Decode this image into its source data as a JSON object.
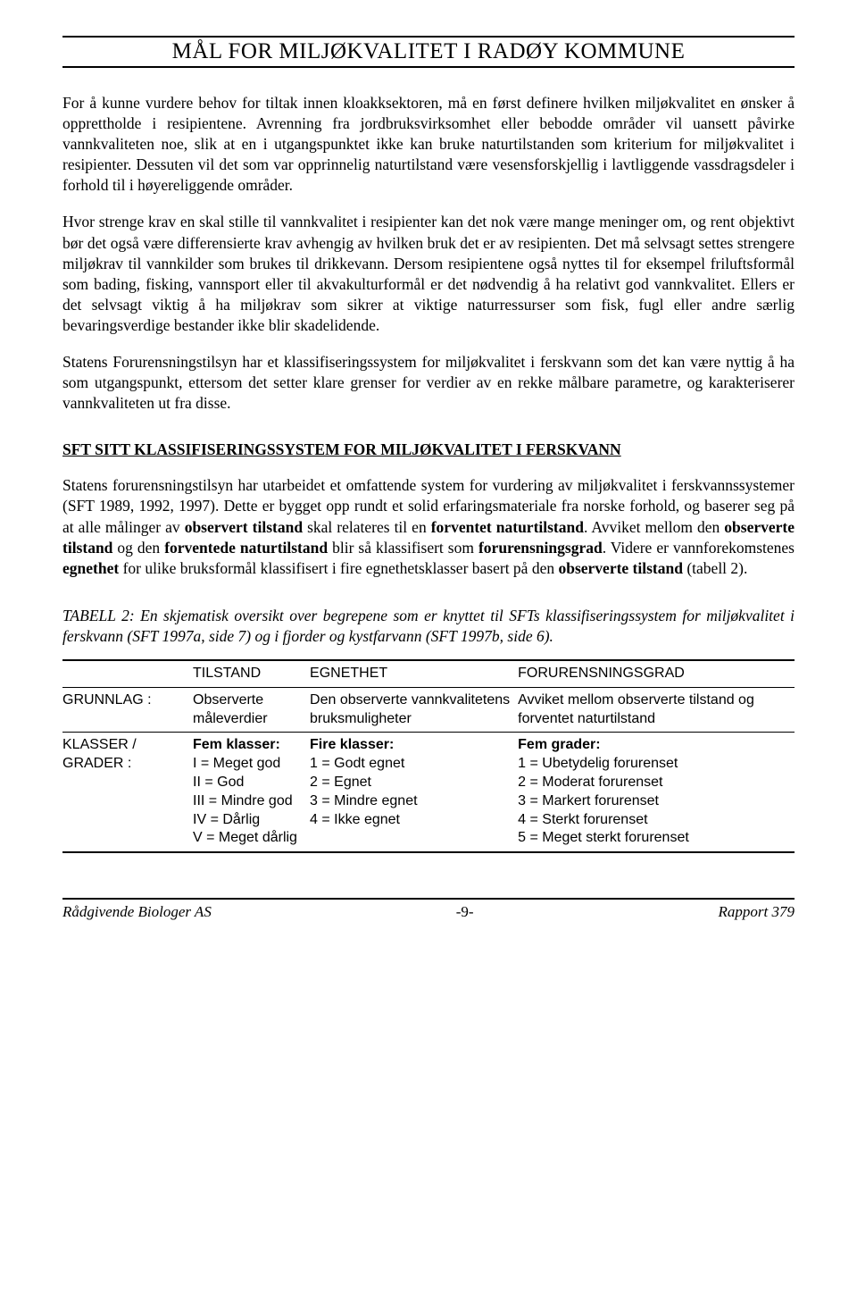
{
  "title": "MÅL FOR MILJØKVALITET I RADØY KOMMUNE",
  "paragraphs": {
    "p1": "For å kunne vurdere behov for tiltak innen kloakksektoren, må en først definere hvilken miljøkvalitet en ønsker å opprettholde i resipientene. Avrenning fra jordbruksvirksomhet eller bebodde områder vil uansett påvirke vannkvaliteten noe, slik at en i utgangspunktet ikke kan bruke naturtilstanden som kriterium for miljøkvalitet i resipienter. Dessuten vil det som var opprinnelig naturtilstand være vesensforskjellig i lavtliggende vassdragsdeler i forhold til i høyereliggende områder.",
    "p2": "Hvor strenge krav en skal stille til vannkvalitet i resipienter kan det nok være mange meninger om, og rent objektivt bør det også være differensierte krav avhengig av hvilken bruk det er av resipienten. Det må selvsagt settes strengere miljøkrav til vannkilder som brukes til drikkevann. Dersom resipientene også nyttes til for eksempel friluftsformål som bading, fisking, vannsport eller til akvakulturformål er det nødvendig å ha relativt god vannkvalitet. Ellers er det selvsagt viktig å ha miljøkrav som sikrer at viktige naturressurser som fisk, fugl eller andre særlig bevaringsverdige bestander ikke blir skadelidende.",
    "p3": "Statens Forurensningstilsyn har et klassifiseringssystem for miljøkvalitet i ferskvann som det kan være nyttig å ha som utgangspunkt, ettersom det setter klare grenser for verdier av en rekke målbare parametre, og karakteriserer vannkvaliteten ut fra disse.",
    "p4a": "Statens forurensningstilsyn har utarbeidet et omfattende system for vurdering av miljøkvalitet i ferskvannssystemer (SFT 1989, 1992, 1997). Dette er bygget opp rundt et solid erfaringsmateriale fra norske forhold, og baserer seg på at alle målinger av ",
    "p4b": "observert tilstand",
    "p4c": " skal relateres til en ",
    "p4d": "forventet naturtilstand",
    "p4e": ". Avviket mellom den ",
    "p4f": "observerte tilstand",
    "p4g": " og den ",
    "p4h": "forventede naturtilstand",
    "p4i": " blir så klassifisert som ",
    "p4j": "forurensningsgrad",
    "p4k": ". Videre er vannforekomstenes ",
    "p4l": "egnethet",
    "p4m": " for ulike bruksformål klassifisert i fire egnethetsklasser basert på den ",
    "p4n": "observerte tilstand",
    "p4o": " (tabell 2)."
  },
  "subheading": "SFT SITT KLASSIFISERINGSSYSTEM FOR MILJØKVALITET I FERSKVANN",
  "table_caption": "TABELL 2: En skjematisk oversikt over begrepene som er knyttet til SFTs klassifiseringssystem for miljøkvalitet i ferskvann (SFT 1997a, side 7) og i fjorder og kystfarvann (SFT 1997b, side 6).",
  "table": {
    "headers": [
      "",
      "TILSTAND",
      "EGNETHET",
      "FORURENSNINGSGRAD"
    ],
    "row1": {
      "label": "GRUNNLAG :",
      "c1": "Observerte måleverdier",
      "c2": "Den observerte vannkvalitetens bruksmuligheter",
      "c3": "Avviket mellom observerte tilstand og forventet naturtilstand"
    },
    "row2": {
      "label": "KLASSER / GRADER :",
      "c1_head": "Fem klasser:",
      "c1_1": "I = Meget god",
      "c1_2": "II = God",
      "c1_3": "III = Mindre god",
      "c1_4": "IV = Dårlig",
      "c1_5": "V = Meget dårlig",
      "c2_head": "Fire klasser:",
      "c2_1": "1 = Godt egnet",
      "c2_2": "2 = Egnet",
      "c2_3": "3 = Mindre egnet",
      "c2_4": "4 = Ikke egnet",
      "c3_head": "Fem grader:",
      "c3_1": "1 = Ubetydelig forurenset",
      "c3_2": "2 = Moderat forurenset",
      "c3_3": "3 = Markert forurenset",
      "c3_4": "4 = Sterkt forurenset",
      "c3_5": "5 = Meget sterkt forurenset"
    }
  },
  "footer": {
    "left": "Rådgivende Biologer AS",
    "center": "-9-",
    "right": "Rapport 379"
  }
}
